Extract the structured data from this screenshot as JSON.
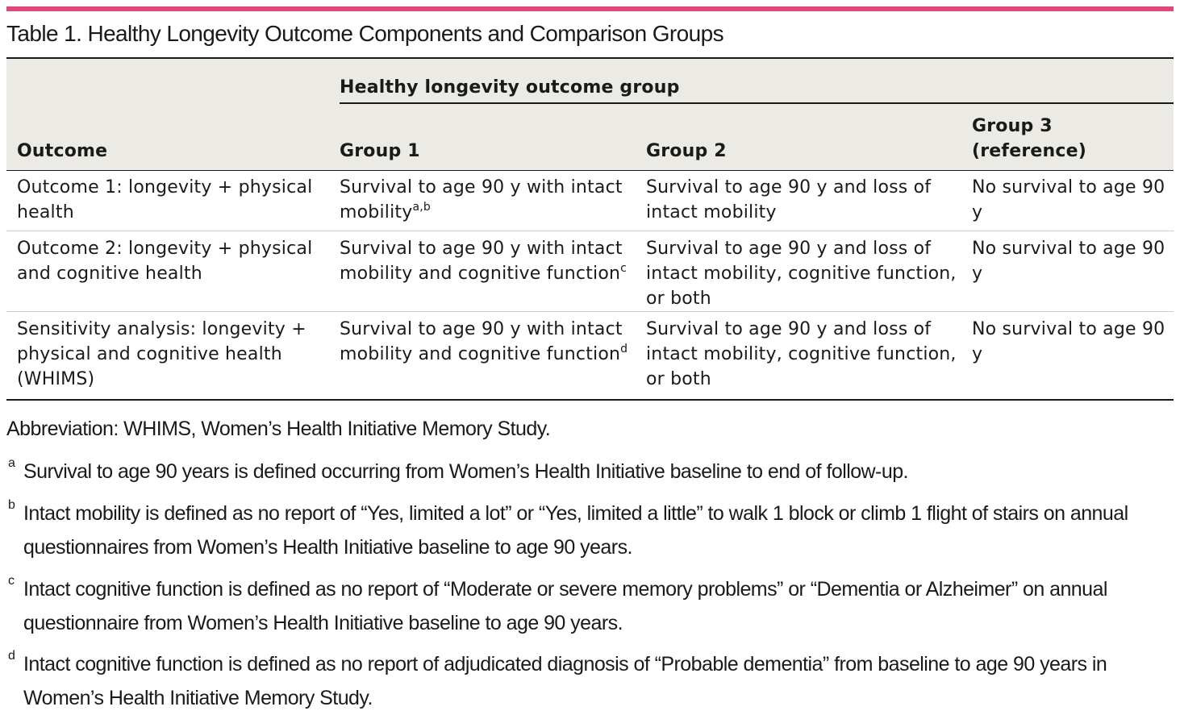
{
  "colors": {
    "accent_bar": "#e0457b",
    "header_bg": "#ebeae4"
  },
  "title": "Table 1. Healthy Longevity Outcome Components and Comparison Groups",
  "table": {
    "spanner": "Healthy longevity outcome group",
    "columns": {
      "outcome": "Outcome",
      "group1": "Group 1",
      "group2": "Group 2",
      "group3_line1": "Group 3",
      "group3_line2": "(reference)"
    },
    "rows": [
      {
        "outcome": "Outcome 1: longevity + physical health",
        "group1": "Survival to age 90 y with intact mobility",
        "group1_sup": "a,b",
        "group2": "Survival to age 90 y and loss of intact mobility",
        "group3": "No survival to age 90 y"
      },
      {
        "outcome": "Outcome 2: longevity + physical and cognitive health",
        "group1": "Survival to age 90 y with intact mobility and cognitive function",
        "group1_sup": "c",
        "group2": "Survival to age 90 y and loss of intact mobility, cognitive function, or both",
        "group3": "No survival to age 90 y"
      },
      {
        "outcome": "Sensitivity analysis: longevity + physical and cognitive health (WHIMS)",
        "group1": "Survival to age 90 y with intact mobility and cognitive function",
        "group1_sup": "d",
        "group2": "Survival to age 90 y and loss of intact mobility, cognitive function, or both",
        "group3": "No survival to age 90 y"
      }
    ]
  },
  "footnotes": {
    "abbreviation": "Abbreviation: WHIMS, Women’s Health Initiative Memory Study.",
    "notes": [
      {
        "mark": "a",
        "text": "Survival to age 90 years is defined occurring from Women’s Health Initiative baseline to end of follow-up."
      },
      {
        "mark": "b",
        "text": "Intact mobility is defined as no report of “Yes, limited a lot” or “Yes, limited a little” to walk 1 block or climb 1 flight of stairs on annual questionnaires from Women’s Health Initiative baseline to age 90 years."
      },
      {
        "mark": "c",
        "text": "Intact cognitive function is defined as no report of “Moderate or severe memory problems” or “Dementia or Alzheimer” on annual questionnaire from Women’s Health Initiative baseline to age 90 years."
      },
      {
        "mark": "d",
        "text": "Intact cognitive function is defined as no report of adjudicated diagnosis of “Probable dementia” from baseline to age 90 years in Women’s Health Initiative Memory Study."
      }
    ]
  }
}
